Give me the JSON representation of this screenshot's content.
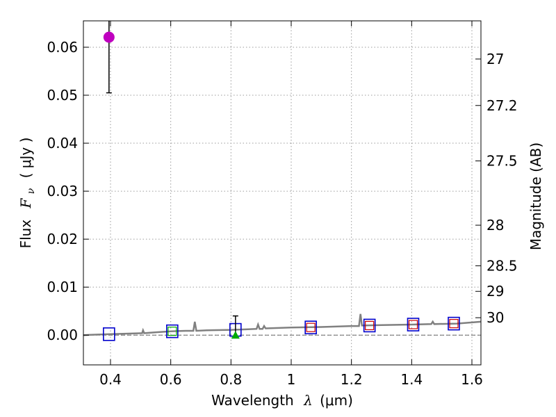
{
  "chart_data": {
    "type": "scatter",
    "xlabel_prefix": "Wavelength",
    "xlabel_symbol": "λ",
    "xlabel_unit": "(μm)",
    "ylabel_prefix": "Flux",
    "ylabel_symbol": "F",
    "ylabel_subscript": "ν",
    "ylabel_unit": "( μJy )",
    "y2label": "Magnitude (AB)",
    "xlim": [
      0.31,
      1.63
    ],
    "ylim": [
      -0.0062,
      0.0655
    ],
    "grid": true,
    "x_ticks": [
      {
        "value": 0.4,
        "label": "0.4"
      },
      {
        "value": 0.6,
        "label": "0.6"
      },
      {
        "value": 0.8,
        "label": "0.8"
      },
      {
        "value": 1.0,
        "label": "1"
      },
      {
        "value": 1.2,
        "label": "1.2"
      },
      {
        "value": 1.4,
        "label": "1.4"
      },
      {
        "value": 1.6,
        "label": "1.6"
      }
    ],
    "y_ticks": [
      {
        "value": 0.0,
        "label": "0.00"
      },
      {
        "value": 0.01,
        "label": "0.01"
      },
      {
        "value": 0.02,
        "label": "0.02"
      },
      {
        "value": 0.03,
        "label": "0.03"
      },
      {
        "value": 0.04,
        "label": "0.04"
      },
      {
        "value": 0.05,
        "label": "0.05"
      },
      {
        "value": 0.06,
        "label": "0.06"
      }
    ],
    "mag_ticks": [
      {
        "mag": 27,
        "label": "27"
      },
      {
        "mag": 27.2,
        "label": "27.2"
      },
      {
        "mag": 27.5,
        "label": "27.5"
      },
      {
        "mag": 28,
        "label": "28"
      },
      {
        "mag": 28.5,
        "label": "28.5"
      },
      {
        "mag": 29,
        "label": "29"
      },
      {
        "mag": 30,
        "label": "30"
      }
    ],
    "model_spectrum": {
      "color": "#808080",
      "points": [
        [
          0.31,
          0.0
        ],
        [
          0.35,
          0.0001
        ],
        [
          0.4,
          0.0002
        ],
        [
          0.45,
          0.0003
        ],
        [
          0.505,
          0.0004
        ],
        [
          0.508,
          0.001
        ],
        [
          0.512,
          0.0004
        ],
        [
          0.55,
          0.0006
        ],
        [
          0.6,
          0.0008
        ],
        [
          0.65,
          0.0009
        ],
        [
          0.675,
          0.0009
        ],
        [
          0.68,
          0.0028
        ],
        [
          0.685,
          0.0009
        ],
        [
          0.72,
          0.001
        ],
        [
          0.8,
          0.0011
        ],
        [
          0.85,
          0.0012
        ],
        [
          0.885,
          0.0013
        ],
        [
          0.89,
          0.0022
        ],
        [
          0.895,
          0.0013
        ],
        [
          0.905,
          0.0013
        ],
        [
          0.91,
          0.0019
        ],
        [
          0.915,
          0.0014
        ],
        [
          1.0,
          0.0016
        ],
        [
          1.1,
          0.0017
        ],
        [
          1.2,
          0.0019
        ],
        [
          1.225,
          0.0019
        ],
        [
          1.23,
          0.0044
        ],
        [
          1.235,
          0.002
        ],
        [
          1.3,
          0.0021
        ],
        [
          1.4,
          0.0022
        ],
        [
          1.465,
          0.0023
        ],
        [
          1.47,
          0.0028
        ],
        [
          1.475,
          0.0023
        ],
        [
          1.55,
          0.0024
        ],
        [
          1.63,
          0.0028
        ]
      ]
    },
    "observed": [
      {
        "name": "observed-point",
        "x": 0.395,
        "y": 0.0621,
        "yerr_low": 0.0116,
        "yerr_high": 0.004,
        "color": "#bf00bf",
        "marker": "circle"
      }
    ],
    "upper_limit": [
      {
        "name": "upper-limit-point",
        "x": 0.815,
        "y": 0.0,
        "err_top": 0.004,
        "color": "#00aa00",
        "marker": "triangle"
      }
    ],
    "model_photometry": [
      {
        "x": 0.395,
        "y": 0.0002
      },
      {
        "x": 0.605,
        "y": 0.0008
      },
      {
        "x": 0.815,
        "y": 0.0011
      },
      {
        "x": 1.065,
        "y": 0.0016
      },
      {
        "x": 1.26,
        "y": 0.002
      },
      {
        "x": 1.405,
        "y": 0.0022
      },
      {
        "x": 1.54,
        "y": 0.0024
      }
    ],
    "inner_squares": [
      {
        "x": 0.605,
        "y": 0.0008,
        "color": "#00aa00"
      },
      {
        "x": 1.065,
        "y": 0.0016,
        "color": "#cc0000"
      },
      {
        "x": 1.26,
        "y": 0.002,
        "color": "#cc0000"
      },
      {
        "x": 1.405,
        "y": 0.0022,
        "color": "#cc0000"
      },
      {
        "x": 1.54,
        "y": 0.0024,
        "color": "#cc0000"
      }
    ],
    "colors": {
      "outer_square": "#0000cc",
      "error_bar": "#000000",
      "grid": "#9a9a9a"
    }
  }
}
